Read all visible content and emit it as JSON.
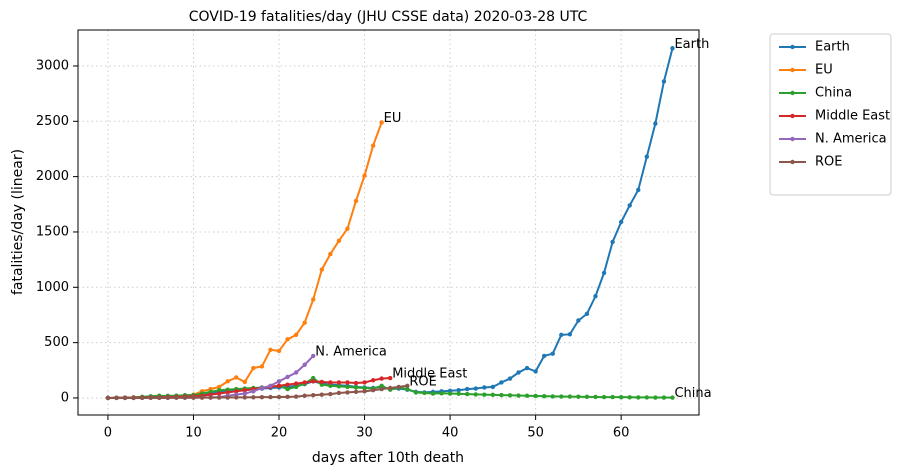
{
  "chart_data": {
    "type": "line",
    "title": "COVID-19 fatalities/day (JHU CSSE data) 2020-03-28 UTC",
    "xlabel": "days after 10th death",
    "ylabel": "fatalities/day (linear)",
    "x": [
      0,
      1,
      2,
      3,
      4,
      5,
      6,
      7,
      8,
      9,
      10,
      11,
      12,
      13,
      14,
      15,
      16,
      17,
      18,
      19,
      20,
      21,
      22,
      23,
      24,
      25,
      26,
      27,
      28,
      29,
      30,
      31,
      32,
      33,
      34,
      35,
      36,
      37,
      38,
      39,
      40,
      41,
      42,
      43,
      44,
      45,
      46,
      47,
      48,
      49,
      50,
      51,
      52,
      53,
      54,
      55,
      56,
      57,
      58,
      59,
      60,
      61,
      62,
      63,
      64,
      65,
      66
    ],
    "series": [
      {
        "name": "Earth",
        "color": "#1f77b4",
        "values": [
          0,
          2,
          3,
          5,
          8,
          12,
          15,
          18,
          20,
          22,
          28,
          35,
          45,
          55,
          60,
          65,
          70,
          78,
          85,
          90,
          95,
          100,
          110,
          125,
          150,
          130,
          120,
          115,
          110,
          100,
          95,
          90,
          100,
          80,
          85,
          75,
          55,
          50,
          55,
          60,
          65,
          70,
          80,
          85,
          95,
          100,
          140,
          175,
          230,
          270,
          240,
          380,
          400,
          570,
          575,
          700,
          760,
          920,
          1130,
          1410,
          1590,
          1740,
          1880,
          2180,
          2480,
          2860,
          3160
        ]
      },
      {
        "name": "EU",
        "color": "#ff7f0e",
        "values": [
          0,
          1,
          2,
          3,
          4,
          5,
          6,
          8,
          10,
          12,
          30,
          60,
          80,
          100,
          150,
          185,
          145,
          270,
          285,
          435,
          425,
          530,
          570,
          680,
          890,
          1160,
          1300,
          1420,
          1530,
          1780,
          2010,
          2280,
          2490,
          null,
          null,
          null,
          null,
          null,
          null,
          null,
          null,
          null,
          null,
          null,
          null,
          null,
          null,
          null,
          null,
          null,
          null,
          null,
          null,
          null,
          null,
          null,
          null,
          null,
          null,
          null,
          null,
          null,
          null,
          null,
          null,
          null,
          null
        ]
      },
      {
        "name": "China",
        "color": "#2ca02c",
        "values": [
          0,
          1,
          2,
          5,
          10,
          15,
          20,
          18,
          20,
          25,
          25,
          40,
          55,
          70,
          75,
          80,
          85,
          90,
          95,
          100,
          110,
          80,
          100,
          130,
          180,
          120,
          110,
          105,
          100,
          95,
          90,
          85,
          110,
          75,
          95,
          80,
          50,
          45,
          40,
          42,
          40,
          38,
          35,
          32,
          30,
          28,
          26,
          24,
          22,
          20,
          18,
          16,
          14,
          13,
          12,
          11,
          10,
          9,
          8,
          8,
          7,
          6,
          5,
          5,
          4,
          4,
          3
        ]
      },
      {
        "name": "Middle East",
        "color": "#d62728",
        "values": [
          0,
          1,
          2,
          3,
          4,
          5,
          6,
          8,
          10,
          12,
          14,
          20,
          30,
          40,
          50,
          60,
          70,
          80,
          90,
          100,
          110,
          120,
          130,
          140,
          150,
          145,
          140,
          140,
          140,
          135,
          140,
          160,
          175,
          180,
          null,
          null,
          null,
          null,
          null,
          null,
          null,
          null,
          null,
          null,
          null,
          null,
          null,
          null,
          null,
          null,
          null,
          null,
          null,
          null,
          null,
          null,
          null,
          null,
          null,
          null,
          null,
          null,
          null,
          null,
          null,
          null,
          null
        ]
      },
      {
        "name": "N. America",
        "color": "#9467bd",
        "values": [
          0,
          0,
          0,
          0,
          0,
          1,
          1,
          1,
          2,
          2,
          3,
          4,
          5,
          8,
          20,
          30,
          40,
          60,
          90,
          110,
          150,
          190,
          230,
          300,
          380,
          null,
          null,
          null,
          null,
          null,
          null,
          null,
          null,
          null,
          null,
          null,
          null,
          null,
          null,
          null,
          null,
          null,
          null,
          null,
          null,
          null,
          null,
          null,
          null,
          null,
          null,
          null,
          null,
          null,
          null,
          null,
          null,
          null,
          null,
          null,
          null,
          null,
          null,
          null,
          null,
          null,
          null
        ]
      },
      {
        "name": "ROE",
        "color": "#8c564b",
        "values": [
          0,
          0,
          0,
          0,
          1,
          1,
          1,
          1,
          2,
          2,
          2,
          3,
          3,
          4,
          4,
          5,
          5,
          6,
          7,
          8,
          9,
          10,
          12,
          20,
          25,
          30,
          35,
          45,
          50,
          55,
          60,
          70,
          80,
          90,
          100,
          110,
          null,
          null,
          null,
          null,
          null,
          null,
          null,
          null,
          null,
          null,
          null,
          null,
          null,
          null,
          null,
          null,
          null,
          null,
          null,
          null,
          null,
          null,
          null,
          null,
          null,
          null,
          null,
          null,
          null,
          null,
          null
        ]
      }
    ],
    "xlim": [
      -3.5,
      69.1
    ],
    "xticks": [
      0,
      10,
      20,
      30,
      40,
      50,
      60
    ],
    "ylim": [
      -154,
      3325
    ],
    "yticks": [
      0,
      500,
      1000,
      1500,
      2000,
      2500,
      3000
    ],
    "grid": true,
    "legend": "outside upper right"
  }
}
